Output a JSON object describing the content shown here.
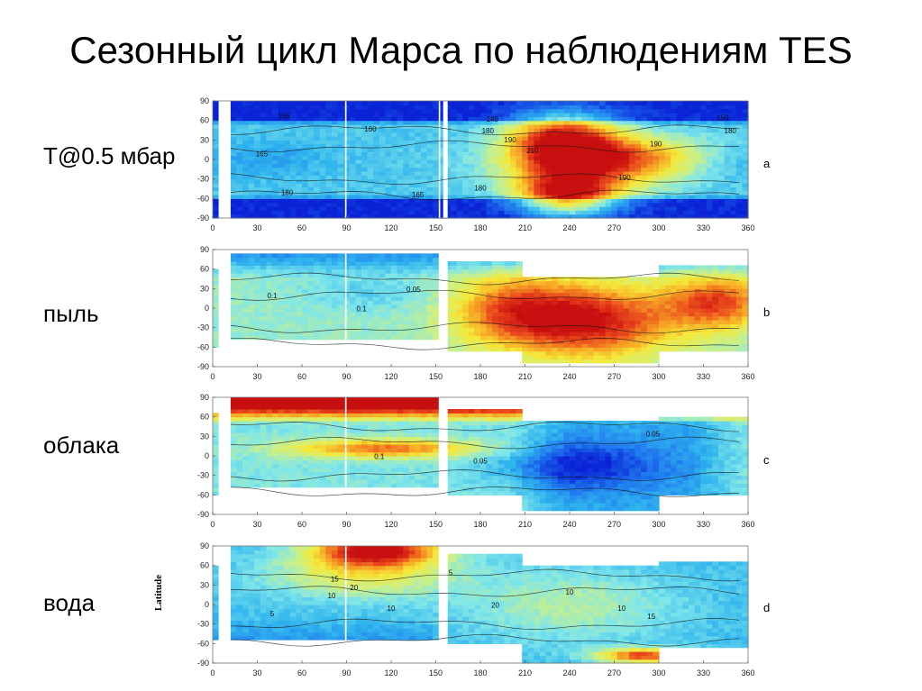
{
  "title": "Сезонный цикл Марса по наблюдениям TES",
  "colors": {
    "scale": [
      "#0a23d6",
      "#1f74ee",
      "#2fb4ee",
      "#7fe6ea",
      "#c9f08a",
      "#f4e93a",
      "#f7a424",
      "#e9461c",
      "#c80f0f"
    ]
  },
  "chart_data": [
    {
      "type": "heatmap",
      "id": "a",
      "side_label": "T@0.5 мбар",
      "letter": "a",
      "xlim": [
        0,
        360
      ],
      "ylim": [
        -90,
        90
      ],
      "xticks": [
        "0",
        "30",
        "60",
        "90",
        "120",
        "150",
        "180",
        "210",
        "240",
        "270",
        "300",
        "330",
        "360"
      ],
      "yticks": [
        "90",
        "60",
        "30",
        "0",
        "-30",
        "-60",
        "-90"
      ],
      "gaps": [
        [
          4,
          12
        ],
        [
          89,
          90
        ],
        [
          152,
          153
        ],
        [
          155,
          158
        ]
      ],
      "coverage": [
        [
          0,
          360,
          -90,
          90
        ]
      ],
      "contour_labels": [
        {
          "x": 48,
          "y": 63,
          "text": "165"
        },
        {
          "x": 33,
          "y": 5,
          "text": "165"
        },
        {
          "x": 50,
          "y": -55,
          "text": "180"
        },
        {
          "x": 138,
          "y": -58,
          "text": "165"
        },
        {
          "x": 106,
          "y": 43,
          "text": "160"
        },
        {
          "x": 185,
          "y": 40,
          "text": "180"
        },
        {
          "x": 200,
          "y": 26,
          "text": "190"
        },
        {
          "x": 215,
          "y": 10,
          "text": "210"
        },
        {
          "x": 298,
          "y": 20,
          "text": "190"
        },
        {
          "x": 180,
          "y": -48,
          "text": "180"
        },
        {
          "x": 277,
          "y": -32,
          "text": "190"
        },
        {
          "x": 343,
          "y": 60,
          "text": "150"
        },
        {
          "x": 188,
          "y": 58,
          "text": "140"
        },
        {
          "x": 348,
          "y": 40,
          "text": "180"
        }
      ]
    },
    {
      "type": "heatmap",
      "id": "b",
      "side_label": "пыль",
      "letter": "b",
      "xlim": [
        0,
        360
      ],
      "ylim": [
        -90,
        90
      ],
      "xticks": [
        "0",
        "30",
        "60",
        "90",
        "120",
        "150",
        "180",
        "210",
        "240",
        "270",
        "300",
        "330",
        "360"
      ],
      "yticks": [
        "90",
        "60",
        "30",
        "0",
        "-30",
        "-60",
        "-90"
      ],
      "gaps": [
        [
          4,
          12
        ],
        [
          89,
          90
        ],
        [
          152,
          153
        ],
        [
          155,
          158
        ]
      ],
      "coverage": [
        [
          0,
          4,
          -60,
          58
        ],
        [
          12,
          152,
          -50,
          82
        ],
        [
          158,
          210,
          -65,
          70
        ],
        [
          210,
          300,
          -85,
          50
        ],
        [
          300,
          360,
          -68,
          65
        ]
      ],
      "contour_labels": [
        {
          "x": 135,
          "y": 25,
          "text": "0.05"
        },
        {
          "x": 40,
          "y": 15,
          "text": "0.1"
        },
        {
          "x": 100,
          "y": -5,
          "text": "0.1"
        }
      ]
    },
    {
      "type": "heatmap",
      "id": "c",
      "side_label": "облака",
      "letter": "c",
      "xlim": [
        0,
        360
      ],
      "ylim": [
        -90,
        90
      ],
      "xticks": [
        "0",
        "30",
        "60",
        "90",
        "120",
        "150",
        "180",
        "210",
        "240",
        "270",
        "300",
        "330",
        "360"
      ],
      "yticks": [
        "90",
        "60",
        "30",
        "0",
        "-30",
        "-60",
        "-90"
      ],
      "gaps": [
        [
          4,
          12
        ],
        [
          89,
          90
        ],
        [
          152,
          153
        ],
        [
          155,
          158
        ]
      ],
      "coverage": [
        [
          0,
          4,
          -60,
          65
        ],
        [
          12,
          152,
          -50,
          88
        ],
        [
          158,
          210,
          -60,
          70
        ],
        [
          210,
          300,
          -85,
          55
        ],
        [
          300,
          360,
          -60,
          62
        ]
      ],
      "contour_labels": [
        {
          "x": 296,
          "y": 30,
          "text": "0.05"
        },
        {
          "x": 112,
          "y": -5,
          "text": "0.1"
        },
        {
          "x": 180,
          "y": -12,
          "text": "0.05"
        }
      ]
    },
    {
      "type": "heatmap",
      "id": "d",
      "side_label": "вода",
      "letter": "d",
      "ylabel": "Latitude",
      "xlim": [
        0,
        360
      ],
      "ylim": [
        -90,
        90
      ],
      "xticks": [
        "0",
        "30",
        "60",
        "90",
        "120",
        "150",
        "180",
        "210",
        "240",
        "270",
        "300",
        "330",
        "360"
      ],
      "yticks": [
        "90",
        "60",
        "30",
        "0",
        "-30",
        "-60",
        "-90"
      ],
      "gaps": [
        [
          4,
          12
        ],
        [
          89,
          90
        ],
        [
          152,
          153
        ],
        [
          155,
          158
        ]
      ],
      "coverage": [
        [
          0,
          4,
          -52,
          62
        ],
        [
          12,
          152,
          -52,
          90
        ],
        [
          158,
          210,
          -60,
          78
        ],
        [
          210,
          300,
          -88,
          60
        ],
        [
          300,
          360,
          -64,
          65
        ]
      ],
      "contour_labels": [
        {
          "x": 82,
          "y": 35,
          "text": "15"
        },
        {
          "x": 95,
          "y": 22,
          "text": "20"
        },
        {
          "x": 80,
          "y": 10,
          "text": "10"
        },
        {
          "x": 40,
          "y": -18,
          "text": "5"
        },
        {
          "x": 120,
          "y": -10,
          "text": "10"
        },
        {
          "x": 190,
          "y": -5,
          "text": "20"
        },
        {
          "x": 275,
          "y": -10,
          "text": "10"
        },
        {
          "x": 295,
          "y": -22,
          "text": "15"
        },
        {
          "x": 160,
          "y": 45,
          "text": "5"
        },
        {
          "x": 240,
          "y": 15,
          "text": "10"
        }
      ]
    }
  ]
}
